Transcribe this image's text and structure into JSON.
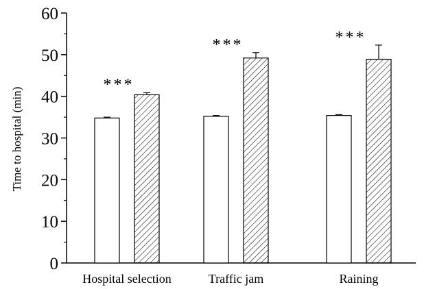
{
  "chart_data": {
    "type": "bar",
    "title": "",
    "xlabel": "",
    "ylabel": "Time to hospital (min)",
    "ylim": [
      0,
      60
    ],
    "yticks": [
      "0",
      "10",
      "20",
      "30",
      "40",
      "50",
      "60"
    ],
    "categories": [
      "Hospital selection",
      "Traffic jam",
      "Raining"
    ],
    "series": [
      {
        "fill": "plain",
        "values": [
          34.8,
          35.2,
          35.4
        ],
        "errors": [
          0.2,
          0.2,
          0.2
        ]
      },
      {
        "fill": "hatched",
        "values": [
          40.4,
          49.2,
          48.9
        ],
        "errors": [
          0.5,
          1.3,
          3.4
        ]
      }
    ],
    "significance": [
      "***",
      "***",
      "***"
    ],
    "grid": false,
    "legend": "none"
  }
}
